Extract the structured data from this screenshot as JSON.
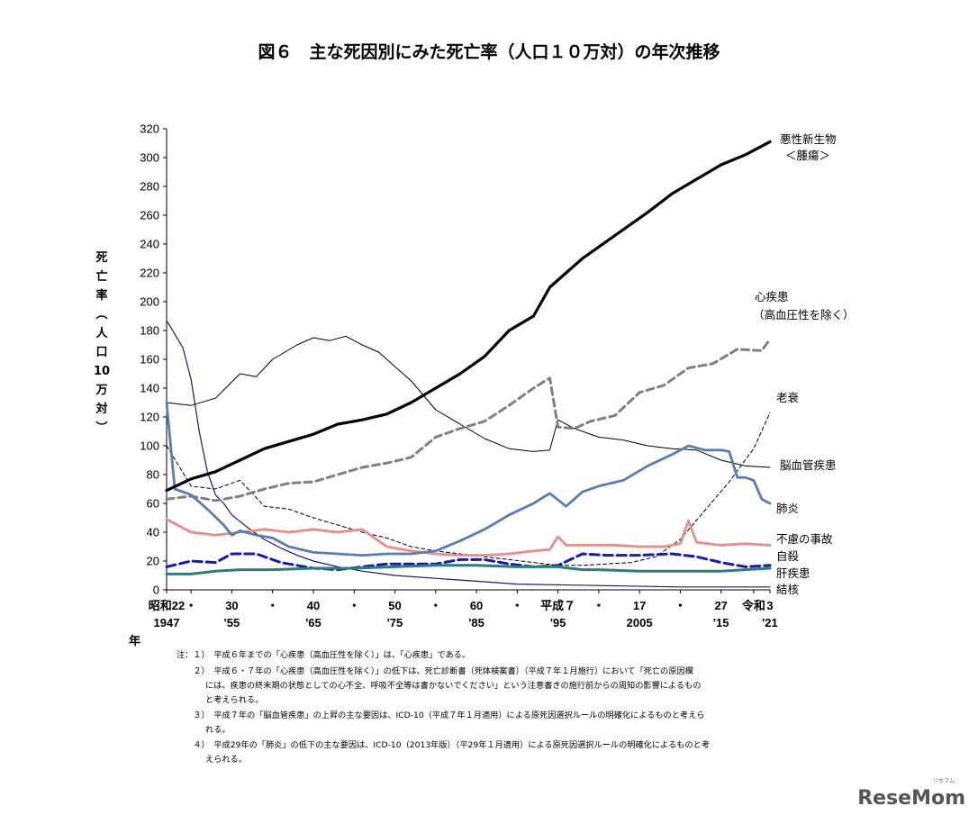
{
  "chart_data": {
    "type": "line",
    "title": "図６　主な死因別にみた死亡率（人口１０万対）の年次推移",
    "ylabel_chars": [
      "死",
      "亡",
      "率",
      "︵",
      "人",
      "口",
      "10",
      "万",
      "対",
      "︶"
    ],
    "xlabel": "年",
    "ylim": [
      0,
      320
    ],
    "yticks": [
      0,
      20,
      40,
      60,
      80,
      100,
      120,
      140,
      160,
      180,
      200,
      220,
      240,
      260,
      280,
      300,
      320
    ],
    "xlim": [
      1947,
      2021
    ],
    "x_era_ticks": [
      {
        "x": 1947,
        "top": "昭和22",
        "bottom": "1947"
      },
      {
        "x": 1950,
        "top": "・",
        "bottom": ""
      },
      {
        "x": 1955,
        "top": "30",
        "bottom": "'55"
      },
      {
        "x": 1960,
        "top": "・",
        "bottom": ""
      },
      {
        "x": 1965,
        "top": "40",
        "bottom": "'65"
      },
      {
        "x": 1970,
        "top": "・",
        "bottom": ""
      },
      {
        "x": 1975,
        "top": "50",
        "bottom": "'75"
      },
      {
        "x": 1980,
        "top": "・",
        "bottom": ""
      },
      {
        "x": 1985,
        "top": "60",
        "bottom": "'85"
      },
      {
        "x": 1990,
        "top": "・",
        "bottom": ""
      },
      {
        "x": 1995,
        "top": "平成７",
        "bottom": "'95"
      },
      {
        "x": 2000,
        "top": "・",
        "bottom": ""
      },
      {
        "x": 2005,
        "top": "17",
        "bottom": "2005"
      },
      {
        "x": 2010,
        "top": "・",
        "bottom": ""
      },
      {
        "x": 2015,
        "top": "27",
        "bottom": "'15"
      },
      {
        "x": 2019,
        "top": "令和",
        "bottom": ""
      },
      {
        "x": 2021,
        "top": "3",
        "bottom": "'21"
      }
    ],
    "grid": false,
    "legend": "inline labels at right end of lines",
    "series": [
      {
        "name": "悪性新生物",
        "sub": "＜腫瘍＞",
        "color": "#000000",
        "width": 3.2,
        "dash": "",
        "x": [
          1947,
          1950,
          1953,
          1956,
          1959,
          1962,
          1965,
          1968,
          1971,
          1974,
          1977,
          1980,
          1983,
          1986,
          1989,
          1992,
          1994,
          1996,
          1998,
          2000,
          2003,
          2006,
          2009,
          2012,
          2015,
          2018,
          2021
        ],
        "y": [
          69,
          77,
          82,
          90,
          98,
          103,
          108,
          115,
          118,
          122,
          130,
          140,
          150,
          162,
          180,
          190,
          210,
          220,
          230,
          238,
          250,
          262,
          275,
          285,
          295,
          302,
          311
        ]
      },
      {
        "name": "心疾患",
        "sub": "（高血圧性を除く）",
        "color": "#808080",
        "width": 3,
        "dash": "8,5",
        "x": [
          1947,
          1950,
          1953,
          1956,
          1959,
          1962,
          1965,
          1968,
          1971,
          1974,
          1977,
          1980,
          1983,
          1986,
          1989,
          1992,
          1994,
          1995,
          1997,
          1999,
          2002,
          2005,
          2008,
          2011,
          2014,
          2017,
          2020,
          2021
        ],
        "y": [
          63,
          65,
          62,
          65,
          70,
          74,
          75,
          80,
          85,
          88,
          92,
          106,
          112,
          117,
          128,
          140,
          147,
          113,
          112,
          117,
          121,
          137,
          142,
          154,
          157,
          167,
          166,
          174
        ]
      },
      {
        "name": "老衰",
        "sub": "",
        "color": "#000000",
        "width": 1,
        "dash": "4,3",
        "x": [
          1947,
          1950,
          1953,
          1956,
          1959,
          1962,
          1965,
          1968,
          1971,
          1974,
          1977,
          1980,
          1983,
          1986,
          1989,
          1992,
          1995,
          1998,
          2001,
          2004,
          2007,
          2010,
          2013,
          2016,
          2019,
          2021
        ],
        "y": [
          100,
          72,
          70,
          76,
          58,
          56,
          50,
          45,
          40,
          36,
          30,
          27,
          25,
          23,
          21,
          19,
          17,
          17,
          18,
          19,
          23,
          35,
          55,
          75,
          98,
          123
        ]
      },
      {
        "name": "脳血管疾患",
        "sub": "",
        "color": "#000000",
        "width": 1,
        "dash": "",
        "x": [
          1947,
          1950,
          1953,
          1956,
          1958,
          1960,
          1963,
          1965,
          1967,
          1969,
          1971,
          1973,
          1975,
          1977,
          1980,
          1983,
          1986,
          1989,
          1992,
          1994,
          1995,
          1997,
          2000,
          2003,
          2006,
          2009,
          2012,
          2015,
          2018,
          2021
        ],
        "y": [
          130,
          128,
          133,
          150,
          148,
          160,
          170,
          175,
          173,
          176,
          170,
          165,
          155,
          145,
          125,
          115,
          105,
          98,
          96,
          97,
          118,
          112,
          106,
          104,
          100,
          98,
          97,
          90,
          86,
          85
        ]
      },
      {
        "name": "肺炎",
        "sub": "",
        "color": "#5A7DAE",
        "width": 2.8,
        "dash": "",
        "x": [
          1947,
          1948,
          1950,
          1952,
          1954,
          1955,
          1956,
          1958,
          1960,
          1962,
          1965,
          1968,
          1971,
          1974,
          1977,
          1980,
          1983,
          1986,
          1989,
          1992,
          1994,
          1996,
          1998,
          2000,
          2003,
          2006,
          2009,
          2011,
          2013,
          2015,
          2016,
          2017,
          2018,
          2019,
          2020,
          2021
        ],
        "y": [
          130,
          70,
          66,
          56,
          45,
          38,
          41,
          38,
          36,
          30,
          26,
          25,
          24,
          25,
          25,
          27,
          34,
          42,
          52,
          60,
          67,
          58,
          68,
          72,
          76,
          86,
          94,
          100,
          97,
          97,
          96,
          78,
          78,
          76,
          63,
          60
        ]
      },
      {
        "name": "結核",
        "sub": "",
        "color": "#1a1a6a",
        "width": 1.2,
        "dash": "",
        "x": [
          1947,
          1949,
          1950,
          1951,
          1952,
          1953,
          1954,
          1955,
          1957,
          1959,
          1961,
          1963,
          1965,
          1968,
          1971,
          1975,
          1980,
          1985,
          1990,
          2000,
          2010,
          2021
        ],
        "y": [
          187,
          168,
          146,
          110,
          82,
          66,
          60,
          52,
          43,
          35,
          29,
          24,
          20,
          16,
          13,
          10,
          8,
          6,
          4,
          3,
          2,
          2
        ]
      },
      {
        "name": "不慮の事故",
        "sub": "",
        "color": "#E39090",
        "width": 3,
        "dash": "2,2",
        "x": [
          1947,
          1950,
          1953,
          1956,
          1959,
          1962,
          1965,
          1968,
          1971,
          1974,
          1977,
          1980,
          1983,
          1986,
          1989,
          1992,
          1994,
          1995,
          1996,
          1999,
          2002,
          2005,
          2008,
          2010,
          2011,
          2012,
          2015,
          2018,
          2021
        ],
        "y": [
          49,
          40,
          38,
          40,
          42,
          40,
          42,
          40,
          42,
          30,
          27,
          25,
          24,
          24,
          25,
          27,
          28,
          37,
          31,
          31,
          31,
          30,
          30,
          32,
          48,
          33,
          31,
          32,
          31
        ]
      },
      {
        "name": "自殺",
        "sub": "",
        "color": "#1a1aaa",
        "width": 3,
        "dash": "10,5",
        "x": [
          1947,
          1950,
          1953,
          1955,
          1958,
          1961,
          1965,
          1968,
          1971,
          1974,
          1977,
          1980,
          1983,
          1986,
          1989,
          1992,
          1995,
          1998,
          2001,
          2005,
          2009,
          2012,
          2015,
          2018,
          2021
        ],
        "y": [
          16,
          20,
          19,
          25,
          25,
          19,
          15,
          14,
          16,
          18,
          18,
          18,
          21,
          21,
          18,
          16,
          17,
          25,
          24,
          24,
          25,
          23,
          19,
          16,
          17
        ]
      },
      {
        "name": "肝疾患",
        "sub": "",
        "color": "#2E7D7A",
        "width": 3,
        "dash": "",
        "x": [
          1947,
          1950,
          1953,
          1956,
          1960,
          1965,
          1970,
          1975,
          1980,
          1985,
          1990,
          1995,
          1998,
          2000,
          2005,
          2010,
          2015,
          2018,
          2021
        ],
        "y": [
          11,
          11,
          13,
          14,
          14,
          15,
          15,
          16,
          17,
          17,
          16,
          16,
          14,
          14,
          13,
          13,
          13,
          14,
          15
        ]
      }
    ]
  },
  "series_labels": [
    {
      "key": "cancer",
      "line1": "悪性新生物",
      "line2": "＜腫瘍＞"
    },
    {
      "key": "heart",
      "line1": "心疾患",
      "line2": "（高血圧性を除く）"
    },
    {
      "key": "senility",
      "line1": "老衰",
      "line2": ""
    },
    {
      "key": "stroke",
      "line1": "脳血管疾患",
      "line2": ""
    },
    {
      "key": "pneumonia",
      "line1": "肺炎",
      "line2": ""
    },
    {
      "key": "accident",
      "line1": "不慮の事故",
      "line2": ""
    },
    {
      "key": "suicide",
      "line1": "自殺",
      "line2": ""
    },
    {
      "key": "liver",
      "line1": "肝疾患",
      "line2": ""
    },
    {
      "key": "tb",
      "line1": "結核",
      "line2": ""
    }
  ],
  "notes": [
    "注：１）　平成６年までの「心疾患（高血圧性を除く）」は、「心疾患」である。",
    "　　２）　平成６・７年の「心疾患（高血圧性を除く）」の低下は、死亡診断書（死体検案書）（平成７年１月施行）において「死亡の原因欄",
    "には、疾患の終末期の状態としての心不全、呼吸不全等は書かないでください」という注意書きの施行前からの周知の影響によるもの",
    "と考えられる。",
    "　　３）　平成７年の「脳血管疾患」の上昇の主な要因は、ICD-10（平成７年１月適用）による原死因選択ルールの明確化によるものと考えら",
    "れる。",
    "　　４）　平成29年の「肺炎」の低下の主な要因は、ICD-10（2013年版）（平29年１月適用）による原死因選択ルールの明確化によるものと考",
    "えられる。"
  ],
  "watermark": {
    "text": "ReseMom",
    "small": "リセマム"
  }
}
